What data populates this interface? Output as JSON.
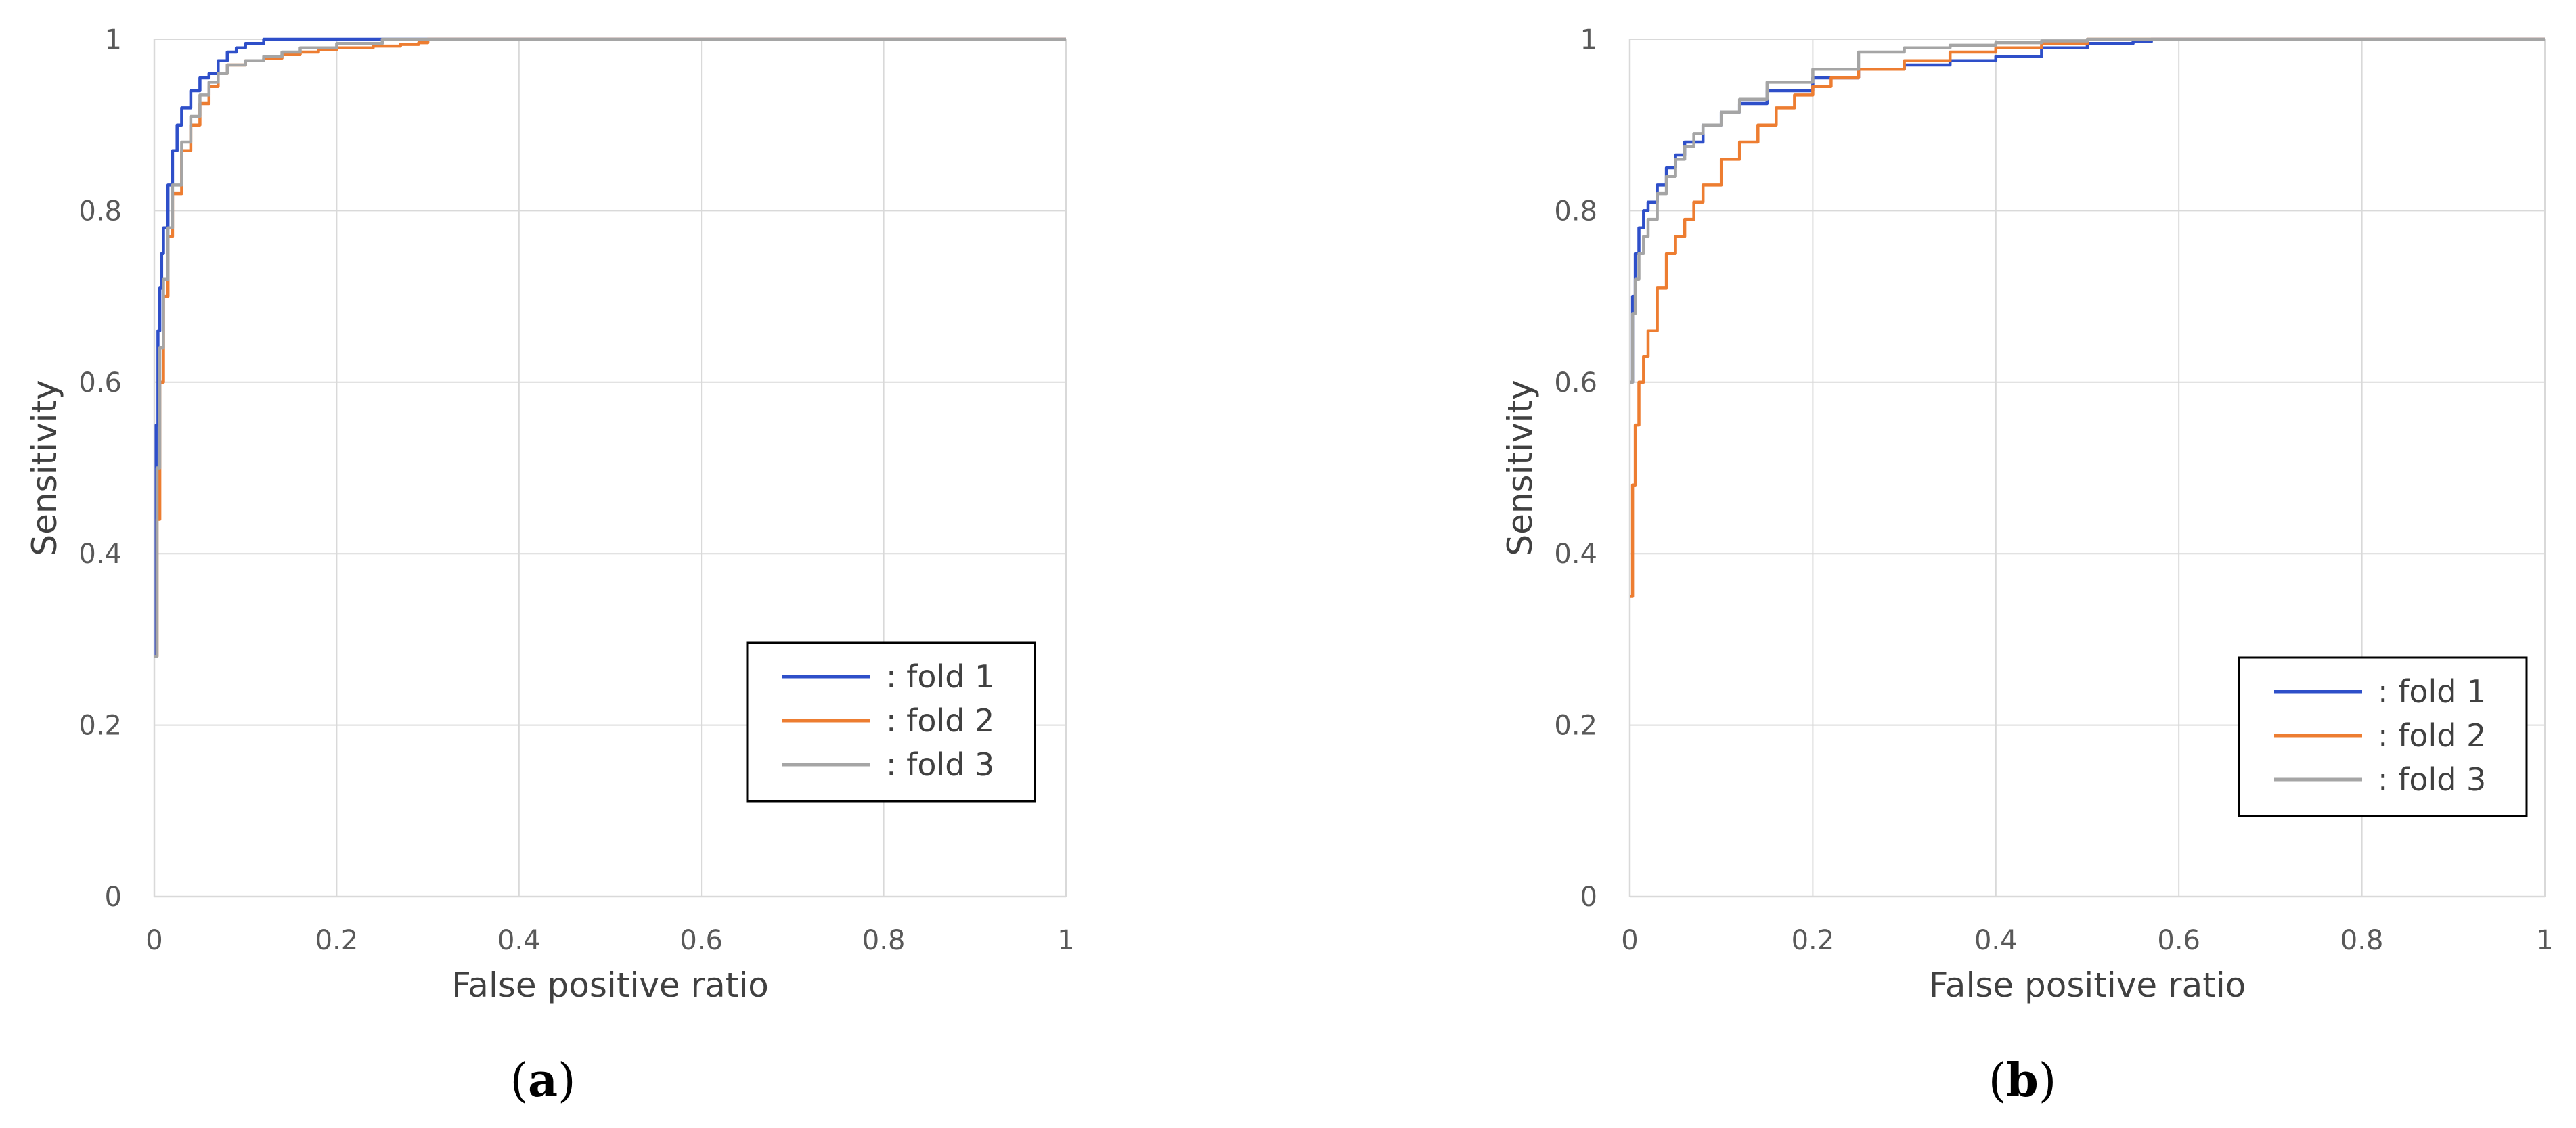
{
  "chart_data": [
    {
      "type": "line",
      "panel_label": {
        "open": "(",
        "letter": "a",
        "close": ")"
      },
      "xlabel": "False positive ratio",
      "ylabel": "Sensitivity",
      "xlim": [
        0,
        1
      ],
      "ylim": [
        0,
        1
      ],
      "xticks": [
        "0",
        "0.2",
        "0.4",
        "0.6",
        "0.8",
        "1"
      ],
      "yticks": [
        "0",
        "0.2",
        "0.4",
        "0.6",
        "0.8",
        "1"
      ],
      "grid": true,
      "legend_position": "bottom-right",
      "series": [
        {
          "name": ": fold 1",
          "color": "#2E4FC9",
          "x": [
            0,
            0.002,
            0.004,
            0.006,
            0.008,
            0.01,
            0.015,
            0.02,
            0.025,
            0.03,
            0.04,
            0.05,
            0.06,
            0.07,
            0.08,
            0.09,
            0.1,
            0.12,
            0.15,
            0.2,
            0.25,
            1
          ],
          "y": [
            0.28,
            0.55,
            0.66,
            0.71,
            0.75,
            0.78,
            0.83,
            0.87,
            0.9,
            0.92,
            0.94,
            0.955,
            0.96,
            0.975,
            0.985,
            0.99,
            0.995,
            1,
            1,
            1,
            1,
            1
          ]
        },
        {
          "name": ": fold 2",
          "color": "#ED7D31",
          "x": [
            0,
            0.003,
            0.006,
            0.01,
            0.015,
            0.02,
            0.03,
            0.04,
            0.05,
            0.06,
            0.07,
            0.08,
            0.1,
            0.12,
            0.14,
            0.16,
            0.18,
            0.2,
            0.24,
            0.27,
            0.29,
            0.3,
            1
          ],
          "y": [
            0.28,
            0.44,
            0.6,
            0.7,
            0.77,
            0.82,
            0.87,
            0.9,
            0.925,
            0.945,
            0.96,
            0.97,
            0.975,
            0.978,
            0.982,
            0.985,
            0.988,
            0.99,
            0.992,
            0.994,
            0.996,
            1,
            1
          ]
        },
        {
          "name": ": fold 3",
          "color": "#A5A5A5",
          "x": [
            0,
            0.003,
            0.006,
            0.01,
            0.015,
            0.02,
            0.03,
            0.04,
            0.05,
            0.06,
            0.07,
            0.08,
            0.1,
            0.12,
            0.14,
            0.16,
            0.2,
            0.25,
            1
          ],
          "y": [
            0.28,
            0.5,
            0.64,
            0.72,
            0.78,
            0.83,
            0.88,
            0.91,
            0.935,
            0.95,
            0.96,
            0.97,
            0.975,
            0.98,
            0.985,
            0.99,
            0.995,
            1,
            1
          ]
        }
      ]
    },
    {
      "type": "line",
      "panel_label": {
        "open": "(",
        "letter": "b",
        "close": ")"
      },
      "xlabel": "False positive ratio",
      "ylabel": "Sensitivity",
      "xlim": [
        0,
        1
      ],
      "ylim": [
        0,
        1
      ],
      "xticks": [
        "0",
        "0.2",
        "0.4",
        "0.6",
        "0.8",
        "1"
      ],
      "yticks": [
        "0",
        "0.2",
        "0.4",
        "0.6",
        "0.8",
        "1"
      ],
      "grid": true,
      "legend_position": "bottom-right",
      "series": [
        {
          "name": ": fold 1",
          "color": "#2E4FC9",
          "x": [
            0,
            0.003,
            0.006,
            0.01,
            0.015,
            0.02,
            0.03,
            0.04,
            0.05,
            0.06,
            0.08,
            0.1,
            0.12,
            0.15,
            0.2,
            0.25,
            0.3,
            0.35,
            0.4,
            0.45,
            0.5,
            0.55,
            0.57,
            1
          ],
          "y": [
            0.6,
            0.7,
            0.75,
            0.78,
            0.8,
            0.81,
            0.83,
            0.85,
            0.865,
            0.88,
            0.9,
            0.915,
            0.925,
            0.94,
            0.955,
            0.965,
            0.97,
            0.975,
            0.98,
            0.99,
            0.995,
            0.997,
            1,
            1
          ]
        },
        {
          "name": ": fold 2",
          "color": "#ED7D31",
          "x": [
            0,
            0.003,
            0.006,
            0.01,
            0.015,
            0.02,
            0.03,
            0.04,
            0.05,
            0.06,
            0.07,
            0.08,
            0.1,
            0.12,
            0.14,
            0.16,
            0.18,
            0.2,
            0.22,
            0.25,
            0.3,
            0.35,
            0.4,
            0.45,
            0.5,
            1
          ],
          "y": [
            0.35,
            0.48,
            0.55,
            0.6,
            0.63,
            0.66,
            0.71,
            0.75,
            0.77,
            0.79,
            0.81,
            0.83,
            0.86,
            0.88,
            0.9,
            0.92,
            0.935,
            0.945,
            0.955,
            0.965,
            0.975,
            0.985,
            0.99,
            0.995,
            1,
            1
          ]
        },
        {
          "name": ": fold 3",
          "color": "#A5A5A5",
          "x": [
            0,
            0.003,
            0.006,
            0.01,
            0.015,
            0.02,
            0.03,
            0.04,
            0.05,
            0.06,
            0.07,
            0.08,
            0.1,
            0.12,
            0.15,
            0.2,
            0.25,
            0.3,
            0.35,
            0.4,
            0.45,
            0.5,
            1
          ],
          "y": [
            0.6,
            0.68,
            0.72,
            0.75,
            0.77,
            0.79,
            0.82,
            0.84,
            0.86,
            0.875,
            0.89,
            0.9,
            0.915,
            0.93,
            0.95,
            0.965,
            0.985,
            0.99,
            0.993,
            0.996,
            0.998,
            1,
            1
          ]
        }
      ]
    }
  ]
}
